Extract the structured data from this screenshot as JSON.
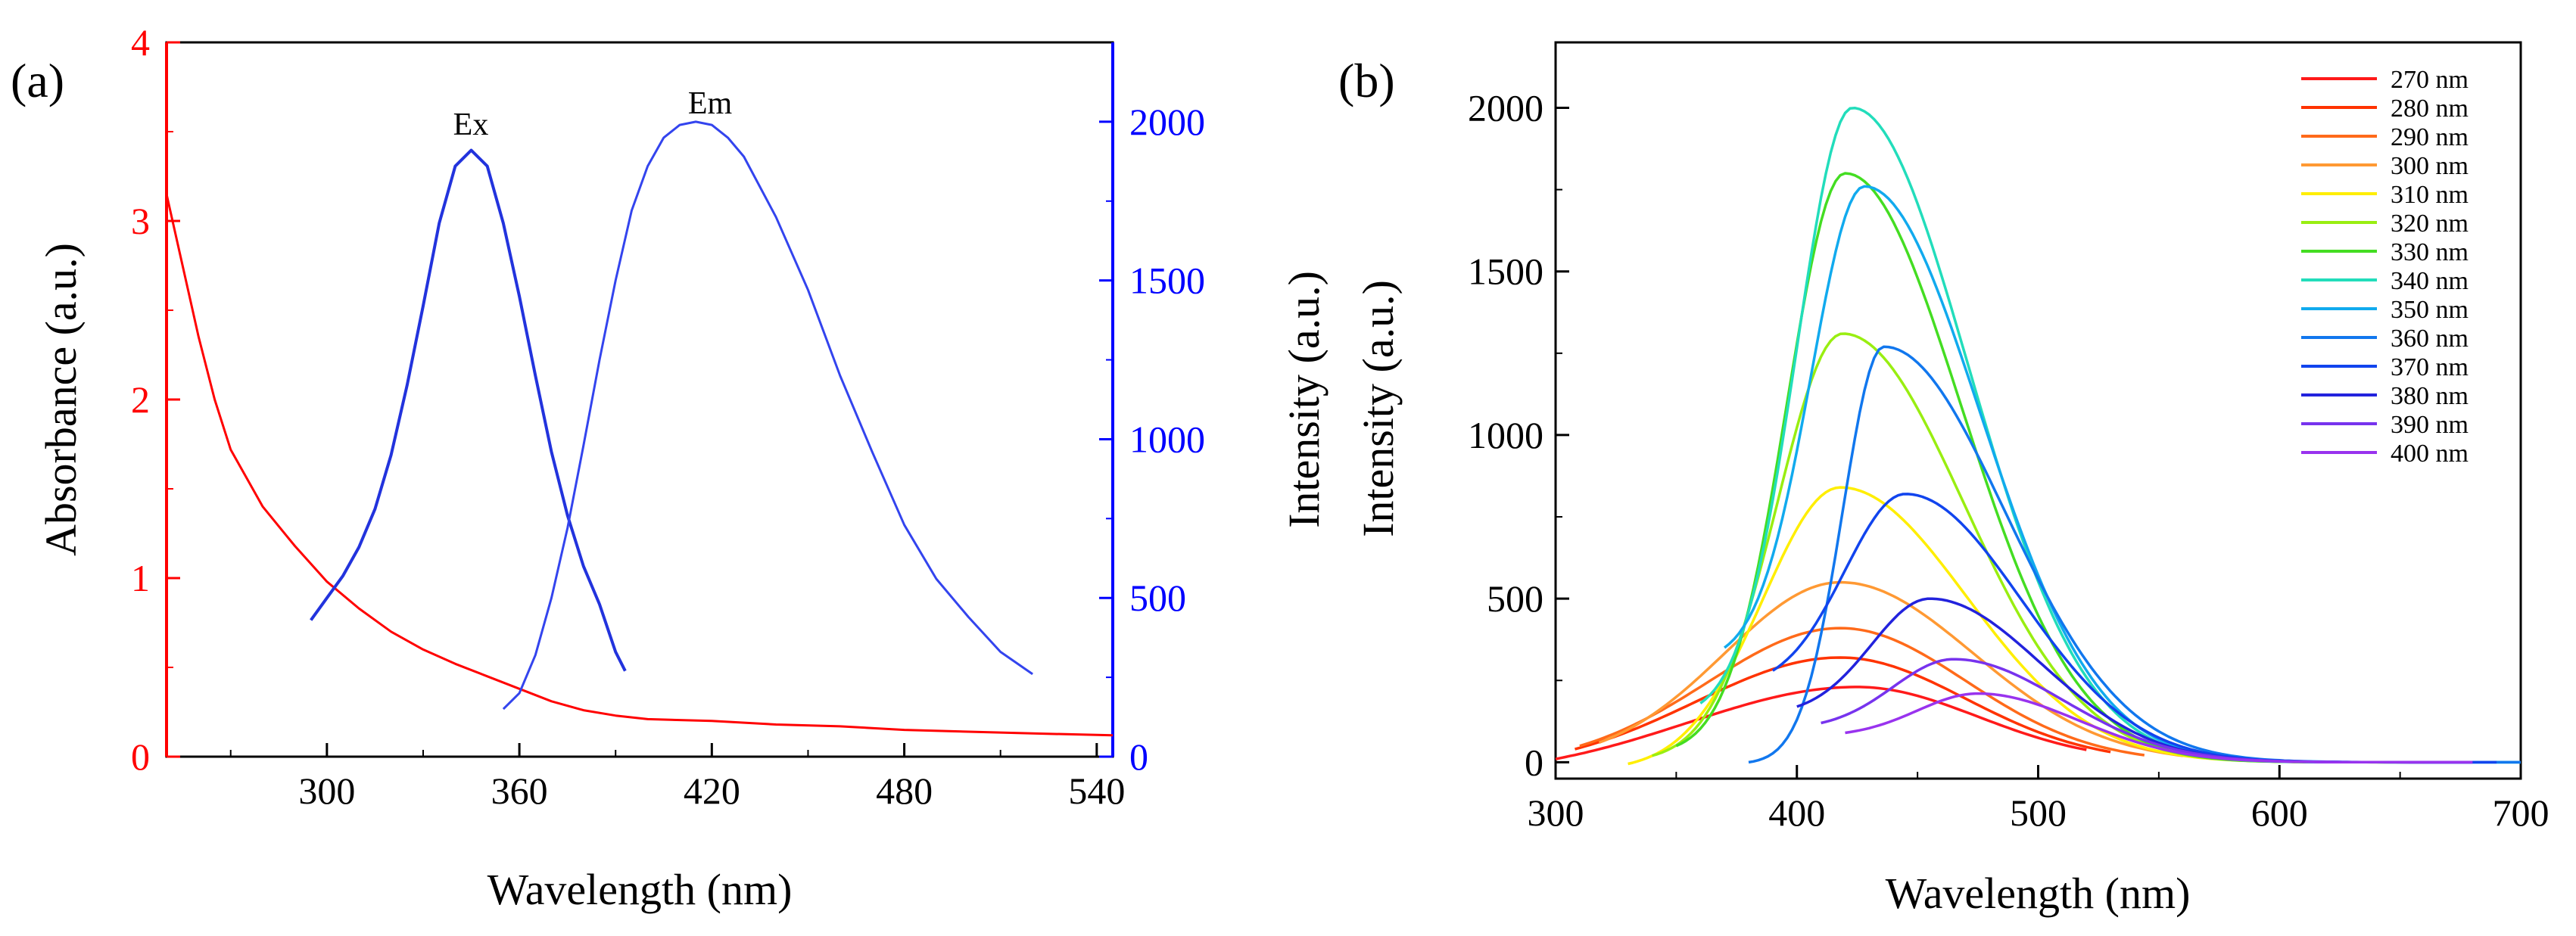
{
  "chart_data": [
    {
      "panel": "(a)",
      "type": "line",
      "xlabel": "Wavelength (nm)",
      "ylabel_left": "Absorbance (a.u.)",
      "ylabel_right": "Intensity (a.u.)",
      "xlim": [
        250,
        545
      ],
      "ylim_left": [
        0,
        4
      ],
      "ylim_right": [
        0,
        2250
      ],
      "xticks": [
        300,
        360,
        420,
        480,
        540
      ],
      "yticks_left": [
        0,
        1,
        2,
        3,
        4
      ],
      "yticks_right": [
        0,
        500,
        1000,
        1500,
        2000
      ],
      "colors": {
        "left_axis": "#ff0000",
        "right_axis": "#0000ff",
        "absorbance": "#ff0000",
        "ex": "#2233dd",
        "em": "#3344ee"
      },
      "annotations": {
        "ex": "Ex",
        "em": "Em"
      },
      "series": [
        {
          "name": "Absorbance",
          "axis": "left",
          "x": [
            250,
            255,
            260,
            265,
            270,
            280,
            290,
            300,
            310,
            320,
            330,
            340,
            350,
            360,
            370,
            380,
            390,
            400,
            420,
            440,
            460,
            480,
            500,
            520,
            545
          ],
          "y": [
            3.15,
            2.75,
            2.35,
            2.0,
            1.72,
            1.4,
            1.18,
            0.98,
            0.83,
            0.7,
            0.6,
            0.52,
            0.45,
            0.38,
            0.31,
            0.26,
            0.23,
            0.21,
            0.2,
            0.18,
            0.17,
            0.15,
            0.14,
            0.13,
            0.12
          ]
        },
        {
          "name": "Ex",
          "axis": "right",
          "x": [
            295,
            300,
            305,
            310,
            315,
            320,
            325,
            330,
            335,
            340,
            345,
            350,
            355,
            360,
            365,
            370,
            375,
            380,
            385,
            390,
            393
          ],
          "y": [
            430,
            500,
            570,
            660,
            780,
            950,
            1170,
            1420,
            1680,
            1860,
            1910,
            1860,
            1680,
            1450,
            1200,
            960,
            760,
            600,
            480,
            330,
            270
          ]
        },
        {
          "name": "Em",
          "axis": "right",
          "x": [
            355,
            360,
            365,
            370,
            375,
            380,
            385,
            390,
            395,
            400,
            405,
            410,
            415,
            420,
            425,
            430,
            440,
            450,
            460,
            470,
            480,
            490,
            500,
            510,
            520
          ],
          "y": [
            150,
            200,
            320,
            500,
            720,
            980,
            1250,
            1500,
            1720,
            1860,
            1950,
            1990,
            2000,
            1990,
            1950,
            1890,
            1700,
            1470,
            1200,
            960,
            730,
            560,
            440,
            330,
            260
          ]
        }
      ]
    },
    {
      "panel": "(b)",
      "type": "line",
      "xlabel": "Wavelength (nm)",
      "ylabel": "Intensity (a.u.)",
      "xlim": [
        300,
        700
      ],
      "ylim": [
        -50,
        2200
      ],
      "xticks": [
        300,
        400,
        500,
        600,
        700
      ],
      "yticks": [
        0,
        500,
        1000,
        1500,
        2000
      ],
      "legend_position": "top-right",
      "series": [
        {
          "name": "270 nm",
          "color": "#ff1a1a",
          "start": 300,
          "end": 520,
          "peak_x": 425,
          "peak_y": 230,
          "sl": 70,
          "sr": 50,
          "y0": 10
        },
        {
          "name": "280 nm",
          "color": "#ff3300",
          "start": 308,
          "end": 530,
          "peak_x": 418,
          "peak_y": 320,
          "sl": 60,
          "sr": 52,
          "y0": 40
        },
        {
          "name": "290 nm",
          "color": "#ff6a1a",
          "start": 310,
          "end": 545,
          "peak_x": 418,
          "peak_y": 410,
          "sl": 55,
          "sr": 52,
          "y0": 50
        },
        {
          "name": "300 nm",
          "color": "#ff9933",
          "start": 318,
          "end": 560,
          "peak_x": 418,
          "peak_y": 550,
          "sl": 48,
          "sr": 55,
          "y0": 60
        },
        {
          "name": "310 nm",
          "color": "#ffee00",
          "start": 330,
          "end": 640,
          "peak_x": 418,
          "peak_y": 840,
          "sl": 32,
          "sr": 52,
          "y0": -5
        },
        {
          "name": "320 nm",
          "color": "#99ee11",
          "start": 340,
          "end": 660,
          "peak_x": 419,
          "peak_y": 1310,
          "sl": 27,
          "sr": 50,
          "y0": 20
        },
        {
          "name": "330 nm",
          "color": "#44dd22",
          "start": 350,
          "end": 680,
          "peak_x": 420,
          "peak_y": 1800,
          "sl": 24,
          "sr": 48,
          "y0": 50
        },
        {
          "name": "340 nm",
          "color": "#22ddbb",
          "start": 360,
          "end": 700,
          "peak_x": 423,
          "peak_y": 2000,
          "sl": 23,
          "sr": 48,
          "y0": 180
        },
        {
          "name": "350 nm",
          "color": "#11aaee",
          "start": 370,
          "end": 700,
          "peak_x": 428,
          "peak_y": 1760,
          "sl": 22,
          "sr": 48,
          "y0": 350
        },
        {
          "name": "360 nm",
          "color": "#1177ee",
          "start": 380,
          "end": 700,
          "peak_x": 436,
          "peak_y": 1270,
          "sl": 17,
          "sr": 50,
          "y0": 0
        },
        {
          "name": "370 nm",
          "color": "#1144ee",
          "start": 390,
          "end": 690,
          "peak_x": 445,
          "peak_y": 820,
          "sl": 25,
          "sr": 48,
          "y0": 280
        },
        {
          "name": "380 nm",
          "color": "#2222dd",
          "start": 400,
          "end": 680,
          "peak_x": 455,
          "peak_y": 500,
          "sl": 24,
          "sr": 46,
          "y0": 170
        },
        {
          "name": "390 nm",
          "color": "#7733ee",
          "start": 410,
          "end": 680,
          "peak_x": 465,
          "peak_y": 315,
          "sl": 25,
          "sr": 45,
          "y0": 120
        },
        {
          "name": "400 nm",
          "color": "#9933ee",
          "start": 420,
          "end": 680,
          "peak_x": 475,
          "peak_y": 210,
          "sl": 25,
          "sr": 42,
          "y0": 90
        }
      ]
    }
  ]
}
